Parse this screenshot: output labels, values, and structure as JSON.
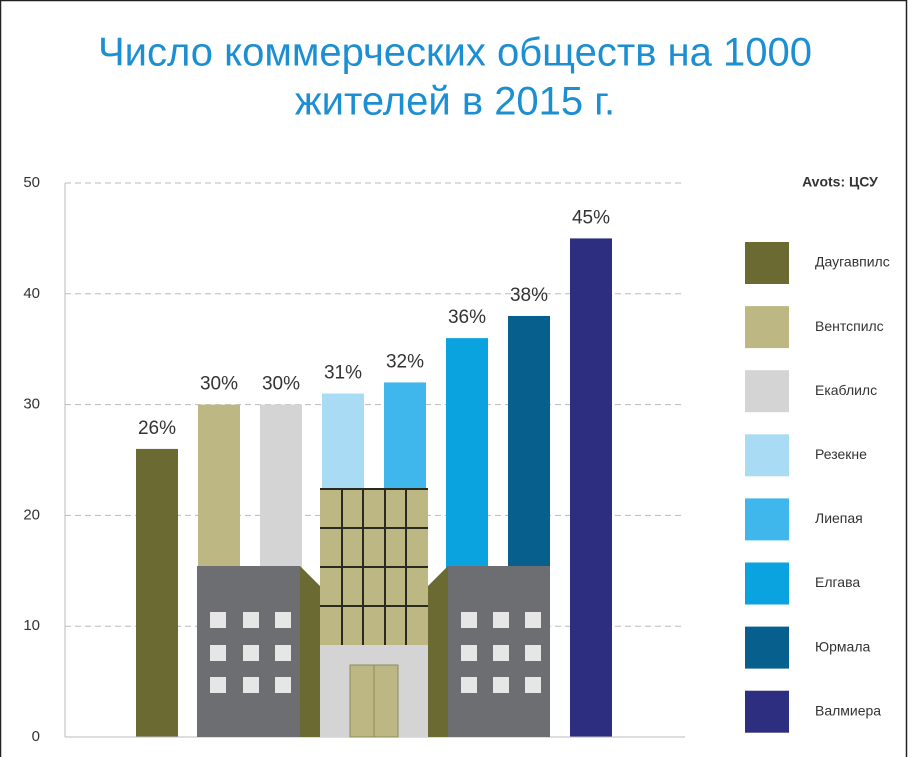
{
  "chart_data": {
    "type": "bar",
    "title": [
      "Число коммерческих обществ на 1000",
      "жителей в 2015 г."
    ],
    "source": "Avots: ЦСУ",
    "categories": [
      "Даугавпилс",
      "Вентспилс",
      "Екаблилс",
      "Резекне",
      "Лиепая",
      "Елгава",
      "Юрмала",
      "Валмиера"
    ],
    "values": [
      26,
      30,
      30,
      31,
      32,
      36,
      38,
      45
    ],
    "value_labels": [
      "26%",
      "30%",
      "30%",
      "31%",
      "32%",
      "36%",
      "38%",
      "45%"
    ],
    "colors": [
      "#6b6a33",
      "#bdb783",
      "#d4d4d4",
      "#a9dcf4",
      "#3fb7ec",
      "#0aa2df",
      "#075f8e",
      "#2e2e80"
    ],
    "ylim": [
      0,
      50
    ],
    "yticks": [
      0,
      10,
      20,
      30,
      40,
      50
    ],
    "grid": true,
    "legend": "right"
  }
}
